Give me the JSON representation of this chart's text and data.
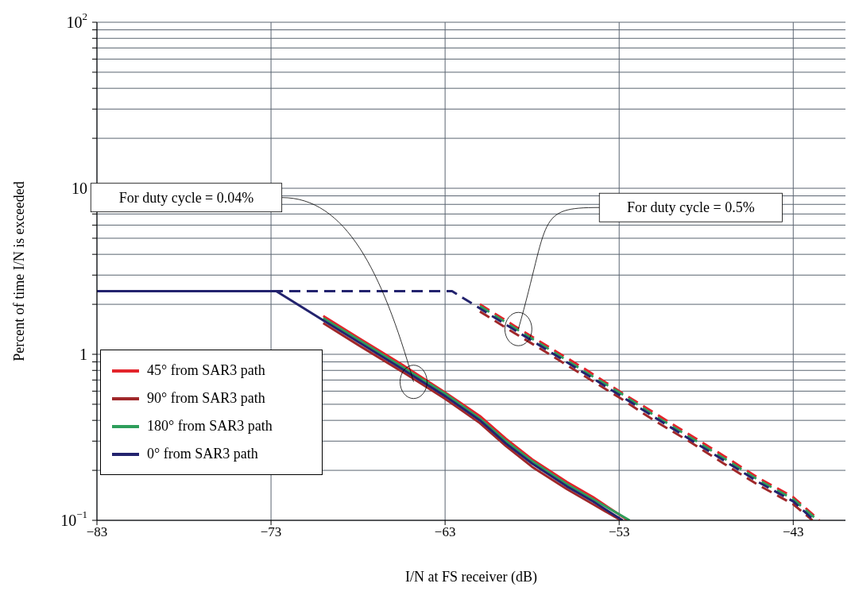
{
  "chart_data": {
    "type": "line",
    "xlabel": "I/N at FS receiver (dB)",
    "ylabel": "Percent of time I/N  is exceeded",
    "xlim": [
      -83,
      -40
    ],
    "xticks": [
      -83,
      -73,
      -63,
      -53,
      -43
    ],
    "ylim": [
      0.1,
      100
    ],
    "yticks": [
      {
        "value": 0.1,
        "label": "10$^{−1}$"
      },
      {
        "value": 0.2,
        "label": null
      },
      {
        "value": 0.3,
        "label": null
      },
      {
        "value": 0.4,
        "label": null
      },
      {
        "value": 0.5,
        "label": null
      },
      {
        "value": 0.6,
        "label": null
      },
      {
        "value": 0.7,
        "label": null
      },
      {
        "value": 0.8,
        "label": null
      },
      {
        "value": 0.9,
        "label": null
      },
      1,
      {
        "value": 2,
        "label": null
      },
      {
        "value": 3,
        "label": null
      },
      {
        "value": 4,
        "label": null
      },
      {
        "value": 5,
        "label": null
      },
      {
        "value": 6,
        "label": null
      },
      {
        "value": 7,
        "label": null
      },
      {
        "value": 8,
        "label": null
      },
      {
        "value": 9,
        "label": null
      },
      10,
      {
        "value": 20,
        "label": null
      },
      {
        "value": 30,
        "label": null
      },
      {
        "value": 40,
        "label": null
      },
      {
        "value": 50,
        "label": null
      },
      {
        "value": 60,
        "label": null
      },
      {
        "value": 70,
        "label": null
      },
      {
        "value": 80,
        "label": null
      },
      {
        "value": 90,
        "label": null
      },
      {
        "value": 100,
        "label": "10$^{2}$"
      }
    ],
    "log": "y",
    "grid": true,
    "legend": "bottom left",
    "marker": "none",
    "annotations": [
      "For duty cycle = 0.04%",
      "For duty cycle = 0.5%"
    ],
    "series": [
      {
        "name": "45° from SAR3 path",
        "color": "#e3242b",
        "line_style": "solid",
        "x": [
          -70,
          -68,
          -65.5,
          -63,
          -61,
          -59.5,
          -58,
          -56,
          -54.5,
          -52.5
        ],
        "values": [
          1.7,
          1.26,
          0.87,
          0.59,
          0.425,
          0.31,
          0.233,
          0.17,
          0.138,
          0.1
        ]
      },
      {
        "name": "90° from SAR3 path",
        "color": "#a0282a",
        "line_style": "solid",
        "x": [
          -70,
          -68,
          -65.5,
          -63,
          -61,
          -59.5,
          -58,
          -56,
          -54.5,
          -52.9
        ],
        "values": [
          1.54,
          1.14,
          0.79,
          0.54,
          0.385,
          0.28,
          0.21,
          0.154,
          0.125,
          0.1
        ]
      },
      {
        "name": "180° from SAR3 path",
        "color": "#2e9e5b",
        "line_style": "solid",
        "x": [
          -70,
          -68,
          -65.5,
          -63,
          -61,
          -59.5,
          -58,
          -56,
          -54.5,
          -52.4
        ],
        "values": [
          1.65,
          1.23,
          0.845,
          0.58,
          0.41,
          0.3,
          0.227,
          0.165,
          0.134,
          0.1
        ]
      },
      {
        "name": "0° from SAR3 path",
        "color": "#23236e",
        "line_style": "solid",
        "x": [
          -83,
          -72.7,
          -70,
          -68,
          -65.5,
          -63,
          -61,
          -59.5,
          -58,
          -56,
          -54.5,
          -52.8
        ],
        "values": [
          2.4,
          2.4,
          1.6,
          1.19,
          0.82,
          0.56,
          0.4,
          0.29,
          0.22,
          0.16,
          0.13,
          0.1
        ]
      },
      {
        "color": "#e3242b",
        "line_style": "dashed",
        "x": [
          -61,
          -59,
          -57,
          -55,
          -53,
          -51,
          -49,
          -47,
          -45,
          -43,
          -41.5
        ],
        "values": [
          2.0,
          1.48,
          1.1,
          0.82,
          0.6,
          0.445,
          0.33,
          0.245,
          0.18,
          0.138,
          0.1
        ]
      },
      {
        "color": "#a0282a",
        "line_style": "dashed",
        "x": [
          -61,
          -59,
          -57,
          -55,
          -53,
          -51,
          -49,
          -47,
          -45,
          -43,
          -41.9
        ],
        "values": [
          1.81,
          1.34,
          1.0,
          0.74,
          0.55,
          0.4,
          0.3,
          0.22,
          0.163,
          0.125,
          0.1
        ]
      },
      {
        "color": "#2e9e5b",
        "line_style": "dashed",
        "x": [
          -61,
          -59,
          -57,
          -55,
          -53,
          -51,
          -49,
          -47,
          -45,
          -43,
          -41.6
        ],
        "values": [
          1.95,
          1.44,
          1.07,
          0.79,
          0.59,
          0.43,
          0.32,
          0.237,
          0.175,
          0.134,
          0.1
        ]
      },
      {
        "color": "#23236e",
        "line_style": "dashed",
        "x": [
          -83,
          -62.6,
          -61,
          -59,
          -57,
          -55,
          -53,
          -51,
          -49,
          -47,
          -45,
          -43,
          -41.8
        ],
        "values": [
          2.4,
          2.4,
          1.89,
          1.4,
          1.04,
          0.77,
          0.57,
          0.42,
          0.31,
          0.23,
          0.17,
          0.13,
          0.1
        ]
      }
    ]
  }
}
